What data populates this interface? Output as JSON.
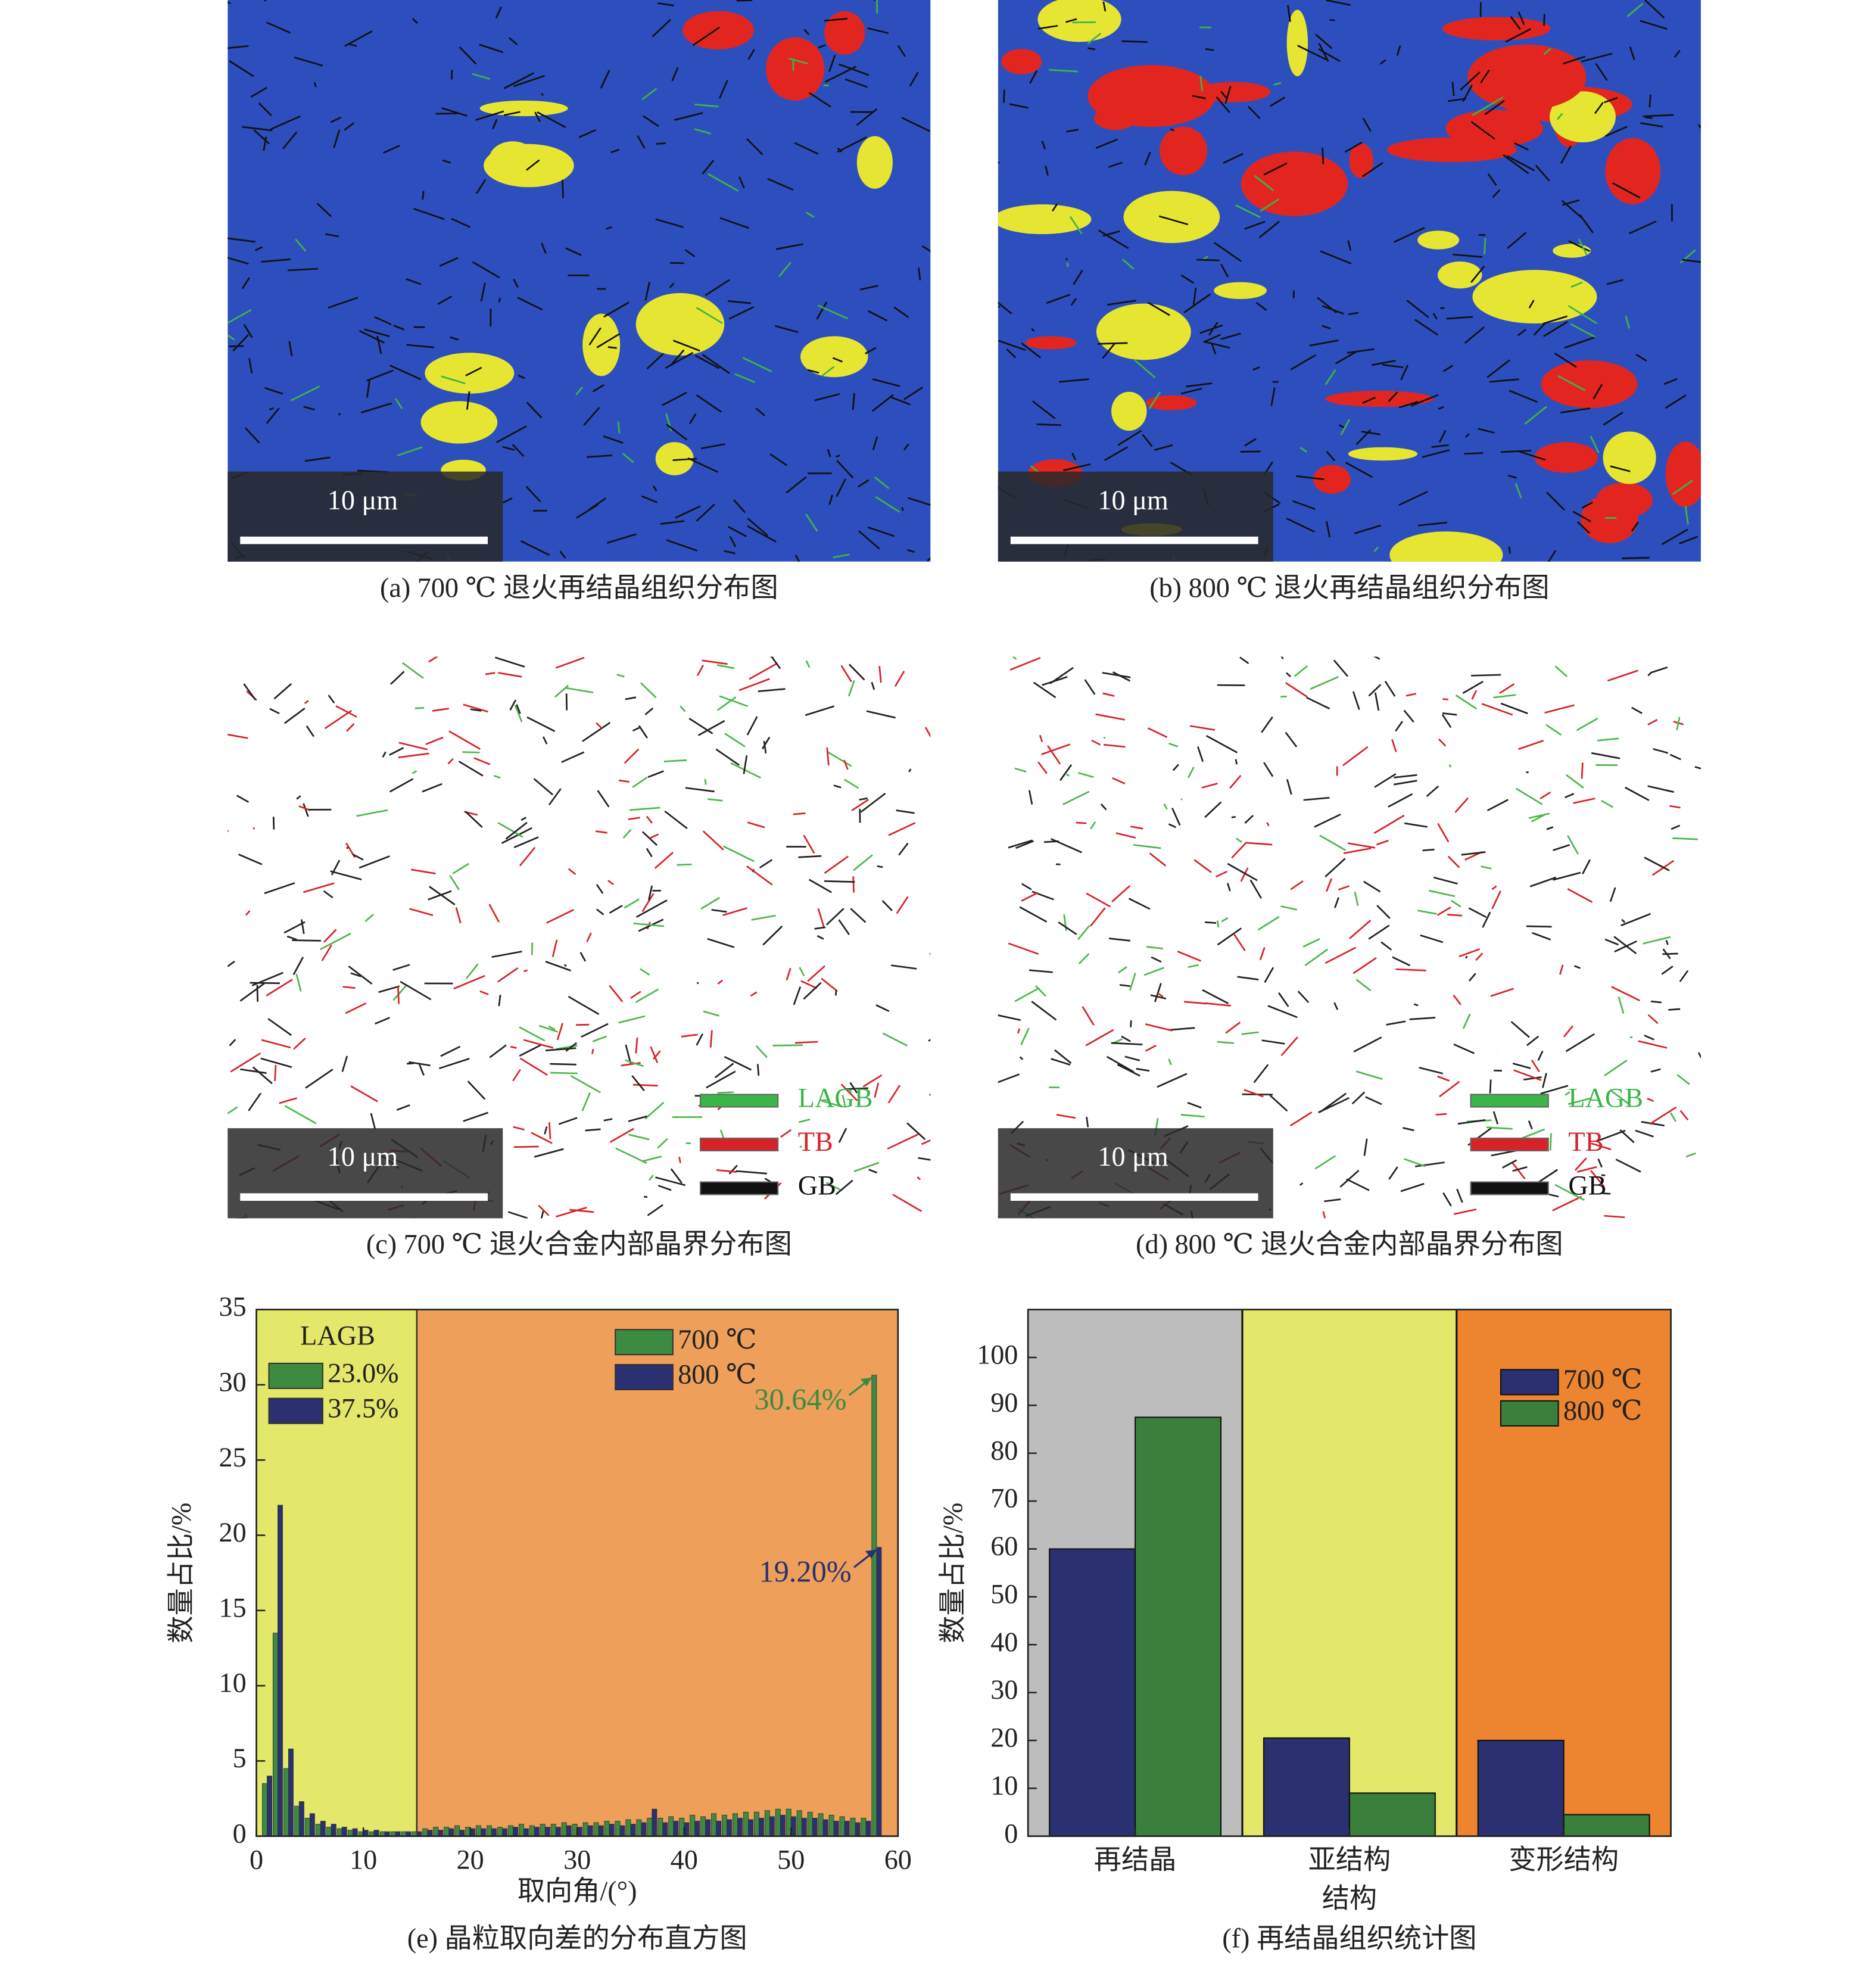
{
  "micrographs": [
    {
      "caption": "(a) 700 ℃ 退火再结晶组织分布图",
      "scale_bar": "10 μm"
    },
    {
      "caption": "(b) 800 ℃ 退火再结晶组织分布图",
      "scale_bar": "10 μm"
    },
    {
      "caption": "(c) 700 ℃ 退火合金内部晶界分布图",
      "scale_bar": "10 μm",
      "legend": [
        "LAGB",
        "TB",
        "GB"
      ]
    },
    {
      "caption": "(d) 800 ℃ 退火合金内部晶界分布图",
      "scale_bar": "10 μm",
      "legend": [
        "LAGB",
        "TB",
        "GB"
      ]
    }
  ],
  "chart_data": [
    {
      "type": "bar",
      "caption": "(e) 晶粒取向差的分布直方图",
      "x_label": "取向角/(°)",
      "y_label": "数量占比/%",
      "x": [
        1,
        2,
        3,
        4,
        5,
        6,
        7,
        8,
        9,
        10,
        11,
        12,
        13,
        14,
        15,
        16,
        17,
        18,
        19,
        20,
        21,
        22,
        23,
        24,
        25,
        26,
        27,
        28,
        29,
        30,
        31,
        32,
        33,
        34,
        35,
        36,
        37,
        38,
        39,
        40,
        41,
        42,
        43,
        44,
        45,
        46,
        47,
        48,
        49,
        50,
        51,
        52,
        53,
        54,
        55,
        56,
        57,
        58
      ],
      "series": [
        {
          "name": "700 ℃",
          "color": "#3d8b40",
          "lagb_label": "23.0%",
          "values": [
            3.5,
            13.5,
            4.5,
            2.0,
            1.2,
            0.8,
            0.6,
            0.5,
            0.4,
            0.3,
            0.3,
            0.3,
            0.3,
            0.3,
            0.3,
            0.5,
            0.6,
            0.6,
            0.7,
            0.6,
            0.7,
            0.7,
            0.6,
            0.7,
            0.8,
            0.7,
            0.8,
            0.8,
            0.9,
            0.8,
            0.9,
            0.9,
            1.0,
            1.0,
            1.1,
            1.1,
            1.2,
            1.2,
            1.3,
            1.2,
            1.4,
            1.3,
            1.5,
            1.4,
            1.5,
            1.6,
            1.6,
            1.7,
            1.8,
            1.8,
            1.7,
            1.6,
            1.5,
            1.4,
            1.3,
            1.2,
            1.2,
            30.64
          ],
          "value_labels": [
            null,
            null,
            null,
            null,
            null,
            null,
            null,
            null,
            null,
            null,
            null,
            null,
            null,
            null,
            null,
            null,
            null,
            null,
            null,
            null,
            null,
            null,
            null,
            null,
            null,
            null,
            null,
            null,
            null,
            null,
            null,
            null,
            null,
            null,
            null,
            null,
            null,
            null,
            null,
            null,
            null,
            null,
            null,
            null,
            null,
            null,
            null,
            null,
            null,
            null,
            null,
            null,
            null,
            null,
            null,
            null,
            null,
            "30.64%"
          ]
        },
        {
          "name": "800 ℃",
          "color": "#2b3070",
          "lagb_label": "37.5%",
          "values": [
            4.0,
            22.0,
            5.8,
            2.3,
            1.5,
            1.0,
            0.8,
            0.6,
            0.5,
            0.4,
            0.4,
            0.3,
            0.3,
            0.3,
            0.3,
            0.4,
            0.4,
            0.5,
            0.4,
            0.5,
            0.5,
            0.5,
            0.5,
            0.6,
            0.5,
            0.6,
            0.6,
            0.6,
            0.7,
            0.6,
            0.7,
            0.7,
            0.8,
            0.7,
            0.8,
            0.9,
            1.8,
            0.9,
            1.0,
            0.9,
            1.0,
            1.1,
            1.0,
            1.1,
            1.2,
            1.1,
            1.2,
            1.3,
            1.4,
            1.3,
            1.2,
            1.2,
            1.1,
            1.0,
            1.0,
            0.9,
            1.0,
            19.2
          ],
          "value_labels": [
            null,
            null,
            null,
            null,
            null,
            null,
            null,
            null,
            null,
            null,
            null,
            null,
            null,
            null,
            null,
            null,
            null,
            null,
            null,
            null,
            null,
            null,
            null,
            null,
            null,
            null,
            null,
            null,
            null,
            null,
            null,
            null,
            null,
            null,
            null,
            null,
            null,
            null,
            null,
            null,
            null,
            null,
            null,
            null,
            null,
            null,
            null,
            null,
            null,
            null,
            null,
            null,
            null,
            null,
            null,
            null,
            null,
            "19.20%"
          ]
        }
      ],
      "inset_title": "LAGB",
      "regions": [
        {
          "from": 0,
          "to": 15,
          "color": "#e3e76a"
        },
        {
          "from": 15,
          "to": 60,
          "color": "#ee9f5a"
        }
      ],
      "xlim": [
        0,
        60
      ],
      "xticks": [
        0,
        10,
        20,
        30,
        40,
        50,
        60
      ],
      "ylim": [
        0,
        35
      ],
      "yticks": [
        0,
        5,
        10,
        15,
        20,
        25,
        30,
        35
      ]
    },
    {
      "type": "bar",
      "caption": "(f) 再结晶组织统计图",
      "x_label": "结构",
      "y_label": "数量占比/%",
      "categories": [
        "再结晶",
        "亚结构",
        "变形结构"
      ],
      "band_colors": [
        "#bdbdbd",
        "#e3e76a",
        "#ec8430"
      ],
      "series": [
        {
          "name": "700 ℃",
          "color": "#2b3070",
          "values": [
            60,
            20.5,
            20
          ]
        },
        {
          "name": "800 ℃",
          "color": "#3a7f3c",
          "values": [
            87.5,
            9,
            4.5
          ]
        }
      ],
      "ylim": [
        0,
        110
      ],
      "yticks": [
        0,
        10,
        20,
        30,
        40,
        50,
        60,
        70,
        80,
        90,
        100
      ]
    }
  ]
}
